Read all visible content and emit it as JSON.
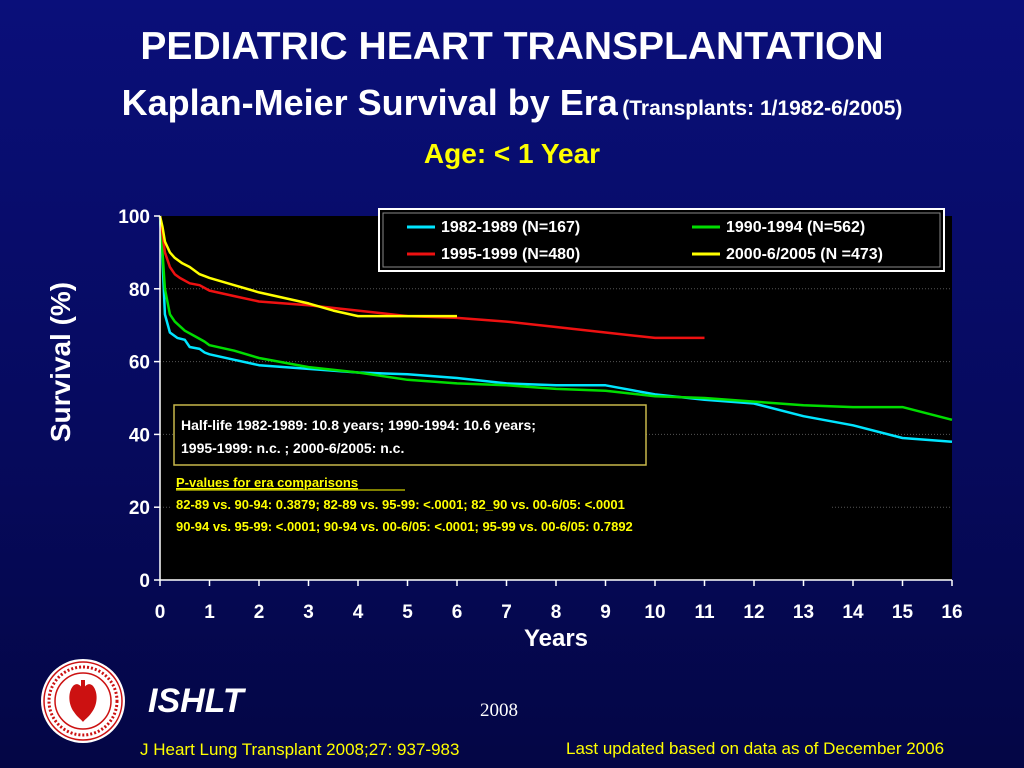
{
  "header": {
    "title": "PEDIATRIC HEART TRANSPLANTATION",
    "subtitle_main": "Kaplan-Meier Survival by Era",
    "subtitle_sub": "(Transplants: 1/1982-6/2005)",
    "subtitle_age": "Age: < 1 Year"
  },
  "footer": {
    "brand": "ISHLT",
    "year": "2008",
    "citation": "J Heart Lung Transplant 2008;27: 937-983",
    "last_updated": "Last updated based on data as of December 2006",
    "logo_icon": "ishlt-seal-icon"
  },
  "colors": {
    "background": "#0a0f7a",
    "plot_bg": "#000000",
    "accent_yellow": "#ffff00"
  },
  "chart_data": {
    "type": "line",
    "xlabel": "Years",
    "ylabel": "Survival (%)",
    "xlim": [
      0,
      16
    ],
    "ylim": [
      0,
      100
    ],
    "x_ticks": [
      "0",
      "1",
      "2",
      "3",
      "4",
      "5",
      "6",
      "7",
      "8",
      "9",
      "10",
      "11",
      "12",
      "13",
      "14",
      "15",
      "16"
    ],
    "y_ticks": [
      "0",
      "20",
      "40",
      "60",
      "80",
      "100"
    ],
    "grid": "horizontal dotted",
    "legend_position": "top-right",
    "series": [
      {
        "name": "1982-1989 (N=167)",
        "color": "#00e5ff",
        "points": [
          [
            0,
            100
          ],
          [
            0.05,
            88
          ],
          [
            0.1,
            73
          ],
          [
            0.2,
            68
          ],
          [
            0.35,
            66.5
          ],
          [
            0.5,
            66
          ],
          [
            0.6,
            64
          ],
          [
            0.8,
            63.5
          ],
          [
            0.9,
            62.5
          ],
          [
            1,
            62
          ],
          [
            1.5,
            60.5
          ],
          [
            2,
            59
          ],
          [
            3,
            58
          ],
          [
            4,
            57
          ],
          [
            5,
            56.5
          ],
          [
            6,
            55.5
          ],
          [
            7,
            54
          ],
          [
            8,
            53.5
          ],
          [
            9,
            53.5
          ],
          [
            10,
            51
          ],
          [
            11,
            49.5
          ],
          [
            12,
            48.5
          ],
          [
            13,
            45
          ],
          [
            14,
            42.5
          ],
          [
            15,
            39
          ],
          [
            16,
            38
          ]
        ]
      },
      {
        "name": "1990-1994 (N=562)",
        "color": "#00dd00",
        "points": [
          [
            0,
            100
          ],
          [
            0.05,
            90
          ],
          [
            0.1,
            80
          ],
          [
            0.2,
            73
          ],
          [
            0.3,
            71
          ],
          [
            0.5,
            68.5
          ],
          [
            0.7,
            67
          ],
          [
            0.9,
            65.5
          ],
          [
            1,
            64.5
          ],
          [
            1.5,
            63
          ],
          [
            2,
            61
          ],
          [
            3,
            58.5
          ],
          [
            4,
            57
          ],
          [
            5,
            55
          ],
          [
            6,
            54
          ],
          [
            7,
            53.5
          ],
          [
            8,
            52.5
          ],
          [
            9,
            52
          ],
          [
            10,
            50.5
          ],
          [
            11,
            50
          ],
          [
            12,
            49
          ],
          [
            13,
            48
          ],
          [
            14,
            47.5
          ],
          [
            15,
            47.5
          ],
          [
            16,
            44
          ]
        ]
      },
      {
        "name": "1995-1999 (N=480)",
        "color": "#ee1111",
        "points": [
          [
            0,
            100
          ],
          [
            0.05,
            95
          ],
          [
            0.1,
            90
          ],
          [
            0.2,
            86
          ],
          [
            0.3,
            84
          ],
          [
            0.4,
            83
          ],
          [
            0.6,
            81.5
          ],
          [
            0.8,
            81
          ],
          [
            1,
            79.5
          ],
          [
            1.5,
            78
          ],
          [
            2,
            76.5
          ],
          [
            3,
            75.5
          ],
          [
            4,
            74
          ],
          [
            5,
            72.5
          ],
          [
            6,
            72
          ],
          [
            7,
            71
          ],
          [
            8,
            69.5
          ],
          [
            9,
            68
          ],
          [
            10,
            66.5
          ],
          [
            11,
            66.5
          ]
        ]
      },
      {
        "name": "2000-6/2005 (N =473)",
        "color": "#ffff00",
        "points": [
          [
            0,
            100
          ],
          [
            0.05,
            97
          ],
          [
            0.1,
            93
          ],
          [
            0.2,
            90
          ],
          [
            0.3,
            88.5
          ],
          [
            0.45,
            87
          ],
          [
            0.6,
            86
          ],
          [
            0.8,
            84
          ],
          [
            0.9,
            83.5
          ],
          [
            1,
            83
          ],
          [
            1.5,
            81
          ],
          [
            2,
            79
          ],
          [
            3,
            76
          ],
          [
            3.5,
            74
          ],
          [
            4,
            72.5
          ],
          [
            5,
            72.5
          ],
          [
            6,
            72.5
          ]
        ]
      }
    ],
    "annotations": {
      "half_life_line1": "Half-life 1982-1989: 10.8 years; 1990-1994: 10.6 years;",
      "half_life_line2": "1995-1999: n.c. ; 2000-6/2005: n.c.",
      "pvalues_title": "P-values for era comparisons",
      "pvalues_line1": "82-89 vs. 90-94: 0.3879; 82-89 vs. 95-99: <.0001; 82_90 vs. 00-6/05: <.0001",
      "pvalues_line2": "90-94 vs. 95-99: <.0001; 90-94 vs. 00-6/05: <.0001; 95-99 vs. 00-6/05: 0.7892"
    }
  }
}
